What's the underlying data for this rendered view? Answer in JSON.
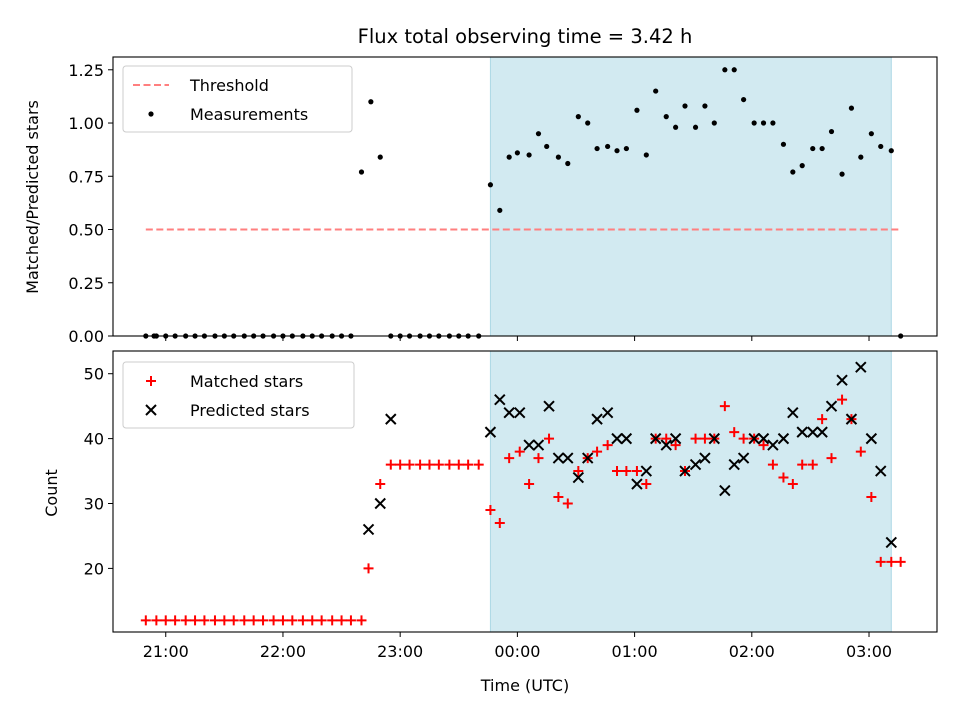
{
  "title": "Flux total observing time = 3.42 h",
  "colors": {
    "observing_span": "#add8e6",
    "threshold": "#ff7f7f",
    "measurements": "#000000",
    "matched": "#ff0000",
    "predicted": "#000000"
  },
  "chart_data": [
    {
      "type": "scatter",
      "panel": "top",
      "xlabel": "",
      "ylabel": "Matched/Predicted stars",
      "x_unit": "time of night (hours after 20:00 UTC)",
      "xlim": [
        0.55,
        7.58
      ],
      "ylim": [
        0,
        1.31
      ],
      "y_ticks": [
        "0.00",
        "0.25",
        "0.50",
        "0.75",
        "1.00",
        "1.25"
      ],
      "legend_position": "top-left",
      "shaded_interval": [
        3.77,
        7.19
      ],
      "threshold": {
        "name": "Threshold",
        "value": 0.5,
        "x_range": [
          0.83,
          7.27
        ],
        "style": "dashed"
      },
      "series": [
        {
          "name": "Measurements",
          "marker": "dot",
          "x": [
            0.83,
            0.9,
            0.92,
            1.0,
            1.08,
            1.17,
            1.25,
            1.33,
            1.42,
            1.5,
            1.58,
            1.67,
            1.75,
            1.83,
            1.92,
            2.0,
            2.08,
            2.17,
            2.25,
            2.33,
            2.42,
            2.5,
            2.58,
            2.67,
            2.75,
            2.83,
            2.92,
            3.0,
            3.08,
            3.17,
            3.25,
            3.33,
            3.42,
            3.5,
            3.58,
            3.67,
            3.77,
            3.85,
            3.93,
            4.0,
            4.1,
            4.18,
            4.25,
            4.35,
            4.43,
            4.52,
            4.6,
            4.68,
            4.77,
            4.85,
            4.93,
            5.02,
            5.1,
            5.18,
            5.27,
            5.35,
            5.43,
            5.52,
            5.6,
            5.68,
            5.77,
            5.85,
            5.93,
            6.02,
            6.1,
            6.18,
            6.27,
            6.35,
            6.43,
            6.52,
            6.6,
            6.68,
            6.77,
            6.85,
            6.93,
            7.02,
            7.1,
            7.19,
            7.27
          ],
          "y": [
            0,
            0,
            0,
            0,
            0,
            0,
            0,
            0,
            0,
            0,
            0,
            0,
            0,
            0,
            0,
            0,
            0,
            0,
            0,
            0,
            0,
            0,
            0,
            0.77,
            1.1,
            0.84,
            0,
            0,
            0,
            0,
            0,
            0,
            0,
            0,
            0,
            0,
            0.71,
            0.59,
            0.84,
            0.86,
            0.85,
            0.95,
            0.89,
            0.84,
            0.81,
            1.03,
            1.0,
            0.88,
            0.89,
            0.87,
            0.88,
            1.06,
            0.85,
            1.15,
            1.03,
            0.98,
            1.08,
            0.98,
            1.08,
            1.0,
            1.25,
            1.25,
            1.11,
            1.0,
            1.0,
            1.0,
            0.9,
            0.77,
            0.8,
            0.88,
            0.88,
            0.96,
            0.76,
            1.07,
            0.84,
            0.95,
            0.89,
            0.87,
            0.0
          ]
        }
      ]
    },
    {
      "type": "scatter",
      "panel": "bottom",
      "xlabel": "Time (UTC)",
      "ylabel": "Count",
      "x_unit": "time of night (hours after 20:00 UTC)",
      "xlim": [
        0.55,
        7.58
      ],
      "ylim": [
        10.2,
        53.5
      ],
      "x_ticks": [
        "21:00",
        "22:00",
        "23:00",
        "00:00",
        "01:00",
        "02:00",
        "03:00"
      ],
      "y_ticks": [
        "20",
        "30",
        "40",
        "50"
      ],
      "legend_position": "top-left",
      "shaded_interval": [
        3.77,
        7.19
      ],
      "series": [
        {
          "name": "Matched stars",
          "marker": "plus",
          "x": [
            0.83,
            0.92,
            1.0,
            1.08,
            1.17,
            1.25,
            1.33,
            1.42,
            1.5,
            1.58,
            1.67,
            1.75,
            1.83,
            1.92,
            2.0,
            2.08,
            2.17,
            2.25,
            2.33,
            2.42,
            2.5,
            2.58,
            2.67,
            2.73,
            2.83,
            2.92,
            3.0,
            3.08,
            3.17,
            3.25,
            3.33,
            3.42,
            3.5,
            3.58,
            3.67,
            3.77,
            3.85,
            3.93,
            4.02,
            4.1,
            4.18,
            4.27,
            4.35,
            4.43,
            4.52,
            4.6,
            4.68,
            4.77,
            4.85,
            4.93,
            5.02,
            5.1,
            5.18,
            5.27,
            5.35,
            5.43,
            5.52,
            5.6,
            5.68,
            5.77,
            5.85,
            5.93,
            6.02,
            6.1,
            6.18,
            6.27,
            6.35,
            6.43,
            6.52,
            6.6,
            6.68,
            6.77,
            6.85,
            6.93,
            7.02,
            7.1,
            7.19,
            7.27
          ],
          "y": [
            12,
            12,
            12,
            12,
            12,
            12,
            12,
            12,
            12,
            12,
            12,
            12,
            12,
            12,
            12,
            12,
            12,
            12,
            12,
            12,
            12,
            12,
            12,
            20,
            33,
            36,
            36,
            36,
            36,
            36,
            36,
            36,
            36,
            36,
            36,
            29,
            27,
            37,
            38,
            33,
            37,
            40,
            31,
            30,
            35,
            37,
            38,
            39,
            35,
            35,
            35,
            33,
            40,
            40,
            39,
            35,
            40,
            40,
            40,
            45,
            41,
            40,
            40,
            39,
            36,
            34,
            33,
            36,
            36,
            43,
            37,
            46,
            43,
            38,
            31,
            21,
            21,
            21
          ]
        },
        {
          "name": "Predicted stars",
          "marker": "cross",
          "x": [
            2.73,
            2.83,
            2.92,
            3.77,
            3.85,
            3.93,
            4.02,
            4.1,
            4.18,
            4.27,
            4.35,
            4.43,
            4.52,
            4.6,
            4.68,
            4.77,
            4.85,
            4.93,
            5.02,
            5.1,
            5.18,
            5.27,
            5.35,
            5.43,
            5.52,
            5.6,
            5.68,
            5.77,
            5.85,
            5.93,
            6.02,
            6.1,
            6.18,
            6.27,
            6.35,
            6.43,
            6.52,
            6.6,
            6.68,
            6.77,
            6.85,
            6.93,
            7.02,
            7.1,
            7.19
          ],
          "y": [
            26,
            30,
            43,
            41,
            46,
            44,
            44,
            39,
            39,
            45,
            37,
            37,
            34,
            37,
            43,
            44,
            40,
            40,
            33,
            35,
            40,
            39,
            40,
            35,
            36,
            37,
            40,
            32,
            36,
            37,
            40,
            40,
            39,
            40,
            44,
            41,
            41,
            41,
            45,
            49,
            43,
            51,
            40,
            35,
            24
          ]
        }
      ]
    }
  ]
}
